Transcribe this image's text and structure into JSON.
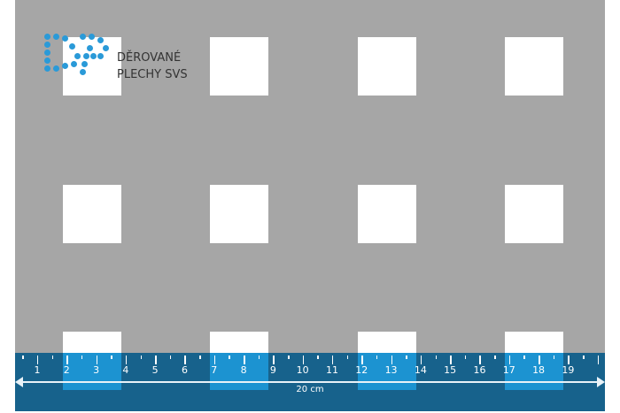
{
  "logo": {
    "line1": "DĚROVANÉ",
    "line2": "PLECHY SVS",
    "color": "#2a9ad8"
  },
  "ruler": {
    "numbers": [
      "1",
      "2",
      "3",
      "4",
      "5",
      "6",
      "7",
      "8",
      "9",
      "10",
      "11",
      "12",
      "13",
      "14",
      "15",
      "16",
      "17",
      "18",
      "19"
    ],
    "length_label": "20 cm",
    "length_cm": 20,
    "background": "#17628c",
    "band_color": "#1c93d1"
  },
  "sheet": {
    "color": "#a6a6a6",
    "hole_shape": "square",
    "hole_size_cm": 2,
    "pitch_cm": 5
  }
}
